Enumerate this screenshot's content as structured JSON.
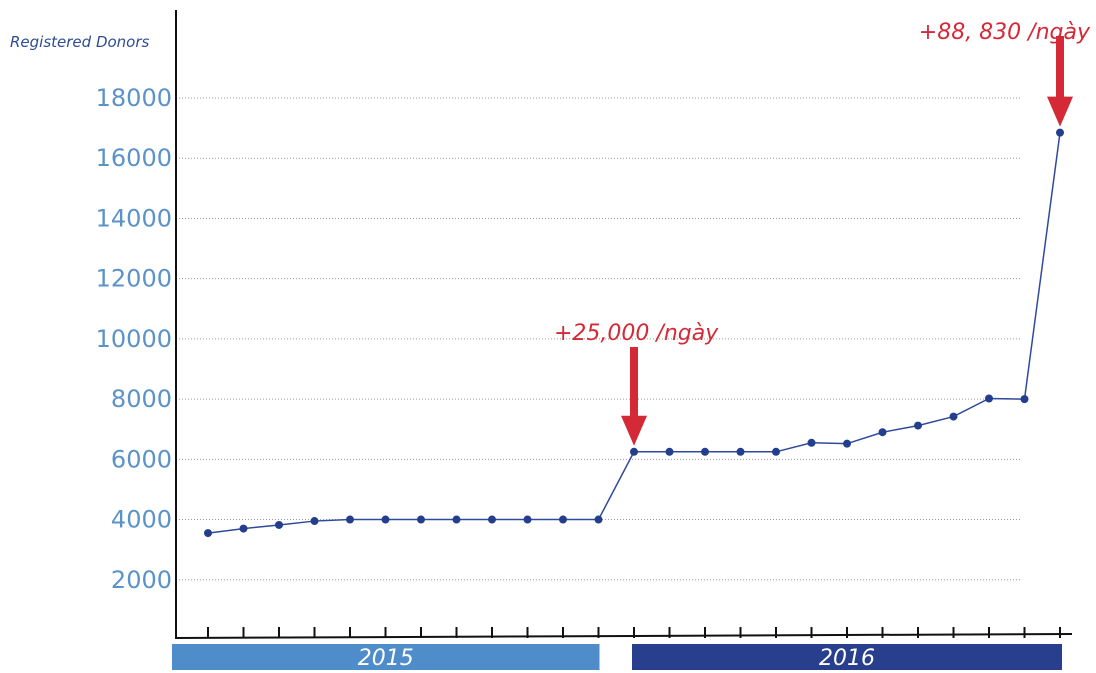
{
  "chart_data": {
    "type": "line",
    "ylabel": "Registered Donors",
    "ylim": [
      0,
      18000
    ],
    "yticks": [
      2000,
      4000,
      6000,
      8000,
      10000,
      12000,
      14000,
      16000,
      18000
    ],
    "grid": true,
    "series": [
      {
        "values": [
          3550,
          3700,
          3820,
          3950,
          4000,
          4000,
          4000,
          4000,
          4000,
          4000,
          4000,
          4000,
          6250,
          6250,
          6250,
          6250,
          6250,
          6550,
          6520,
          6900,
          7120,
          7420,
          8020,
          8000,
          16850
        ]
      }
    ],
    "color": "#2f4a9c",
    "groups": [
      {
        "label": "2015",
        "from": 0,
        "to": 11,
        "color": "#4f8cca"
      },
      {
        "label": "2016",
        "from": 12,
        "to": 23,
        "color": "#283f8d"
      }
    ],
    "annotations": [
      {
        "text": "+25,000 /ngày",
        "index": 12
      },
      {
        "text": "+88, 830 /ngày",
        "index": 24
      }
    ],
    "annotation_color": "#d42a37"
  }
}
